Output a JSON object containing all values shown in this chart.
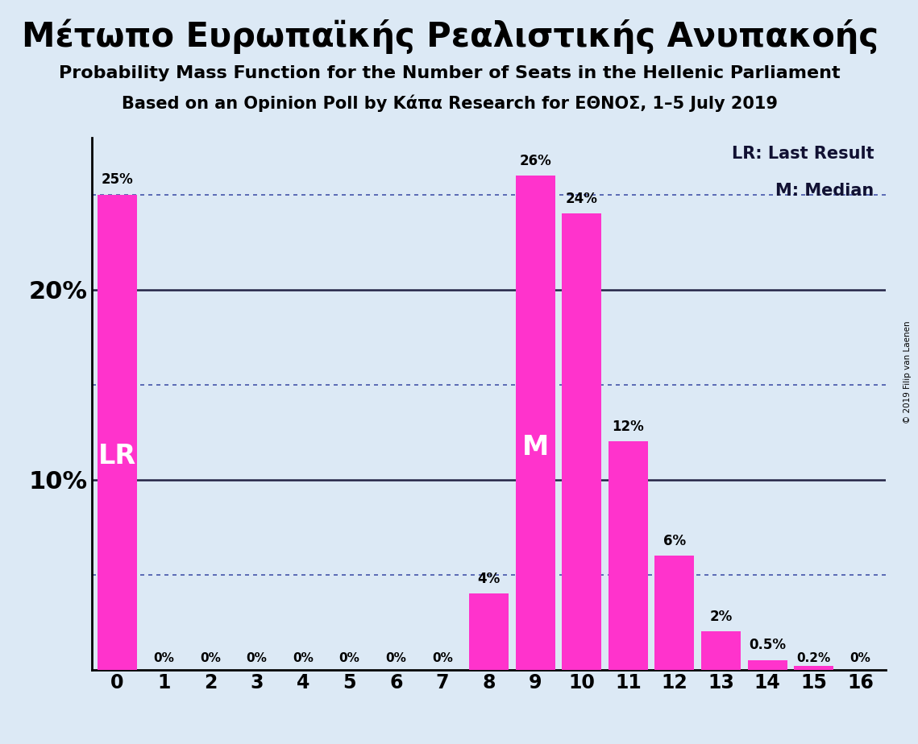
{
  "title_greek": "Μέτωπο Ευρωπαϊκής Ρεαλιστικής Ανυπακοής",
  "subtitle1": "Probability Mass Function for the Number of Seats in the Hellenic Parliament",
  "subtitle2": "Based on an Opinion Poll by Κάπα Research for ΕΘΝΟΣ, 1–5 July 2019",
  "copyright": "© 2019 Filip van Laenen",
  "categories": [
    0,
    1,
    2,
    3,
    4,
    5,
    6,
    7,
    8,
    9,
    10,
    11,
    12,
    13,
    14,
    15,
    16
  ],
  "values": [
    25,
    0,
    0,
    0,
    0,
    0,
    0,
    0,
    4,
    26,
    24,
    12,
    6,
    2,
    0.5,
    0.2,
    0
  ],
  "bar_color": "#FF33CC",
  "background_color": "#DCE9F5",
  "lr_bar": 0,
  "median_bar": 9,
  "lr_label": "LR",
  "median_label": "M",
  "legend_lr": "LR: Last Result",
  "legend_m": "M: Median",
  "dotted_line_values": [
    5,
    15,
    25
  ],
  "solid_line_values": [
    10,
    20
  ],
  "ylim": [
    0,
    28
  ],
  "bar_labels": [
    "25%",
    "0%",
    "0%",
    "0%",
    "0%",
    "0%",
    "0%",
    "0%",
    "4%",
    "26%",
    "24%",
    "12%",
    "6%",
    "2%",
    "0.5%",
    "0.2%",
    "0%"
  ],
  "ytick_positions": [
    10,
    20
  ],
  "ytick_labels": [
    "10%",
    "20%"
  ]
}
